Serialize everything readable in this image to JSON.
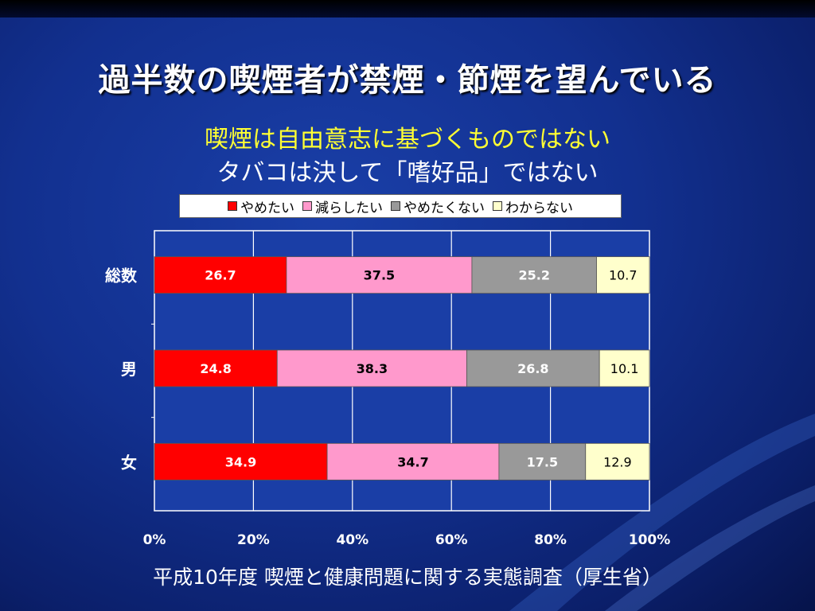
{
  "slide": {
    "title": "過半数の喫煙者が禁煙・節煙を望んでいる",
    "subtitle1": "喫煙は自由意志に基づくものではない",
    "subtitle2": "タバコは決して「嗜好品」ではない",
    "source": "平成10年度 喫煙と健康問題に関する実態調査（厚生省）"
  },
  "chart_data": {
    "type": "bar",
    "orientation": "horizontal",
    "stacked": "percent",
    "categories": [
      "総数",
      "男",
      "女"
    ],
    "series": [
      {
        "name": "やめたい",
        "color": "#ff0000",
        "label_color": "#ffffff",
        "values": [
          26.7,
          24.8,
          34.9
        ]
      },
      {
        "name": "減らしたい",
        "color": "#ff99cc",
        "label_color": "#000000",
        "values": [
          37.5,
          38.3,
          34.7
        ]
      },
      {
        "name": "やめたくない",
        "color": "#999999",
        "label_color": "#ffffff",
        "values": [
          25.2,
          26.8,
          17.5
        ]
      },
      {
        "name": "わからない",
        "color": "#ffffcc",
        "label_color": "#000000",
        "values": [
          10.7,
          10.1,
          12.9
        ]
      }
    ],
    "x_ticks": [
      "0%",
      "20%",
      "40%",
      "60%",
      "80%",
      "100%"
    ],
    "xlim": [
      0,
      100
    ],
    "grid": true,
    "legend_position": "top"
  }
}
